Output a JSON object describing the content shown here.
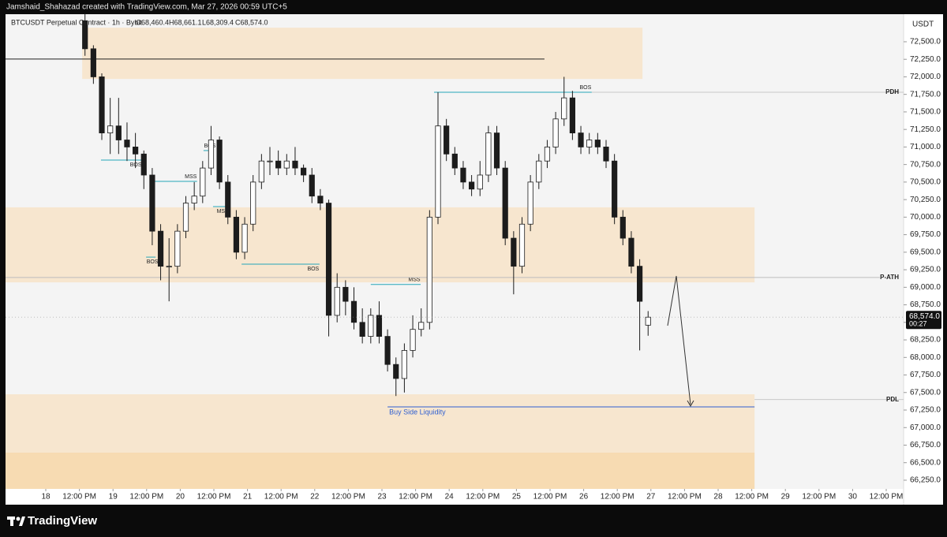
{
  "header": {
    "credit": "Jamshaid_Shahazad created with TradingView.com, Mar 27, 2026 00:59 UTC+5",
    "brand": "TradingView"
  },
  "chart_data": {
    "type": "candlestick",
    "symbol": "BTCUSDT Perpetual Contract · 1h · Bybit",
    "ohlc_legend": [
      "O68,460.4",
      "H68,661.1",
      "L68,309.4",
      "C68,574.0"
    ],
    "currency": "USDT",
    "up_color": "#ffffff",
    "down_color": "#1c1c1c",
    "wick_color": "#1c1c1c",
    "x": [
      14,
      17,
      20,
      23,
      26,
      29,
      32,
      35,
      38,
      41,
      44,
      47,
      50,
      53,
      56,
      59,
      62,
      65,
      68,
      71,
      74,
      77,
      80,
      83,
      86,
      89,
      92,
      95,
      98,
      101,
      104,
      107,
      110,
      113,
      116,
      119,
      122,
      125,
      128,
      131,
      134,
      137,
      140,
      143,
      146,
      149,
      152,
      155,
      158,
      161,
      164,
      167,
      170,
      173,
      176,
      179,
      182,
      185,
      188,
      191,
      194,
      197,
      200,
      203,
      206,
      209,
      212,
      215
    ],
    "open": [
      72800,
      72400,
      72000,
      71200,
      71300,
      71100,
      71000,
      70900,
      70600,
      69800,
      69300,
      69300,
      69800,
      70200,
      70300,
      70700,
      71100,
      70500,
      70000,
      69500,
      69900,
      70500,
      70800,
      70800,
      70700,
      70800,
      70700,
      70600,
      70300,
      70200,
      68600,
      69000,
      68800,
      68500,
      68300,
      68600,
      68300,
      67900,
      67700,
      68100,
      68400,
      68500,
      70000,
      71300,
      70900,
      70700,
      70500,
      70400,
      70600,
      71200,
      70700,
      69700,
      69300,
      69900,
      70500,
      70800,
      71000,
      71400,
      71700,
      71200,
      71000,
      71100,
      71000,
      70800,
      70000,
      69700,
      69300,
      68460
    ],
    "high": [
      72900,
      72450,
      72050,
      71700,
      71700,
      71350,
      71200,
      70950,
      70700,
      69900,
      69700,
      69900,
      70300,
      70500,
      70800,
      71300,
      71150,
      70600,
      70100,
      70000,
      70600,
      70900,
      71000,
      70950,
      70900,
      71000,
      70750,
      70700,
      70400,
      70250,
      69200,
      69100,
      69000,
      68700,
      68700,
      68800,
      68400,
      68000,
      68200,
      68600,
      68700,
      70100,
      71780,
      71400,
      71000,
      70800,
      70600,
      70800,
      71300,
      71300,
      70800,
      69800,
      70000,
      70600,
      70900,
      71100,
      71500,
      72000,
      71800,
      71300,
      71200,
      71200,
      71100,
      70900,
      70100,
      69800,
      69400,
      68661
    ],
    "low": [
      72300,
      71900,
      71100,
      70900,
      70900,
      70800,
      70700,
      70400,
      69600,
      69100,
      68800,
      69200,
      69700,
      70100,
      70200,
      70600,
      70400,
      69900,
      69400,
      69400,
      69800,
      70400,
      70600,
      70600,
      70600,
      70600,
      70500,
      70200,
      70100,
      68300,
      68500,
      68600,
      68400,
      68200,
      68200,
      68200,
      67800,
      67450,
      67500,
      68000,
      68300,
      68400,
      69900,
      70800,
      70600,
      70400,
      70300,
      70300,
      70500,
      70600,
      69600,
      68900,
      69200,
      69800,
      70400,
      70700,
      70900,
      71300,
      71100,
      70900,
      70900,
      70900,
      70700,
      69900,
      69600,
      69200,
      68100,
      68309
    ],
    "close": [
      72400,
      72000,
      71200,
      71300,
      71100,
      71000,
      70900,
      70600,
      69800,
      69300,
      69300,
      69800,
      70200,
      70300,
      70700,
      71100,
      70500,
      70000,
      69500,
      69900,
      70500,
      70800,
      70800,
      70700,
      70800,
      70700,
      70600,
      70300,
      70200,
      68600,
      69000,
      68800,
      68500,
      68300,
      68600,
      68300,
      67900,
      67700,
      68100,
      68400,
      68500,
      70000,
      71300,
      70900,
      70700,
      70500,
      70400,
      70600,
      71200,
      70700,
      69700,
      69300,
      69900,
      70500,
      70800,
      71000,
      71400,
      71700,
      71200,
      71000,
      71100,
      71000,
      70800,
      70000,
      69700,
      69300,
      68800,
      68574
    ],
    "xlim": [
      -14.37,
      306.2
    ],
    "ylim": [
      66126,
      72893
    ],
    "xticks": [
      {
        "value": 0,
        "label": "18"
      },
      {
        "value": 12,
        "label": "12:00 PM"
      },
      {
        "value": 24,
        "label": "19"
      },
      {
        "value": 36,
        "label": "12:00 PM"
      },
      {
        "value": 48,
        "label": "20"
      },
      {
        "value": 60,
        "label": "12:00 PM"
      },
      {
        "value": 72,
        "label": "21"
      },
      {
        "value": 84,
        "label": "12:00 PM"
      },
      {
        "value": 96,
        "label": "22"
      },
      {
        "value": 108,
        "label": "12:00 PM"
      },
      {
        "value": 120,
        "label": "23"
      },
      {
        "value": 132,
        "label": "12:00 PM"
      },
      {
        "value": 144,
        "label": "24"
      },
      {
        "value": 156,
        "label": "12:00 PM"
      },
      {
        "value": 168,
        "label": "25"
      },
      {
        "value": 180,
        "label": "12:00 PM"
      },
      {
        "value": 192,
        "label": "26"
      },
      {
        "value": 204,
        "label": "12:00 PM"
      },
      {
        "value": 216,
        "label": "27"
      },
      {
        "value": 228,
        "label": "12:00 PM"
      },
      {
        "value": 240,
        "label": "28"
      },
      {
        "value": 252,
        "label": "12:00 PM"
      },
      {
        "value": 264,
        "label": "29"
      },
      {
        "value": 276,
        "label": "12:00 PM"
      },
      {
        "value": 288,
        "label": "30"
      },
      {
        "value": 300,
        "label": "12:00 PM"
      }
    ],
    "yticks": [
      {
        "value": 72500,
        "label": "72,500.0"
      },
      {
        "value": 72250,
        "label": "72,250.0"
      },
      {
        "value": 72000,
        "label": "72,000.0"
      },
      {
        "value": 71750,
        "label": "71,750.0"
      },
      {
        "value": 71500,
        "label": "71,500.0"
      },
      {
        "value": 71250,
        "label": "71,250.0"
      },
      {
        "value": 71000,
        "label": "71,000.0"
      },
      {
        "value": 70750,
        "label": "70,750.0"
      },
      {
        "value": 70500,
        "label": "70,500.0"
      },
      {
        "value": 70250,
        "label": "70,250.0"
      },
      {
        "value": 70000,
        "label": "70,000.0"
      },
      {
        "value": 69750,
        "label": "69,750.0"
      },
      {
        "value": 69500,
        "label": "69,500.0"
      },
      {
        "value": 69250,
        "label": "69,250.0"
      },
      {
        "value": 69000,
        "label": "69,000.0"
      },
      {
        "value": 68750,
        "label": "68,750.0"
      },
      {
        "value": 68500,
        "label": "68,500.0"
      },
      {
        "value": 68250,
        "label": "68,250.0"
      },
      {
        "value": 68000,
        "label": "68,000.0"
      },
      {
        "value": 67750,
        "label": "67,750.0"
      },
      {
        "value": 67500,
        "label": "67,500.0"
      },
      {
        "value": 67250,
        "label": "67,250.0"
      },
      {
        "value": 67000,
        "label": "67,000.0"
      },
      {
        "value": 66750,
        "label": "66,750.0"
      },
      {
        "value": 66500,
        "label": "66,500.0"
      },
      {
        "value": 66250,
        "label": "66,250.0"
      }
    ],
    "grid": false,
    "last_price": {
      "value": 68574,
      "label": "68,574.0"
    },
    "countdown": "00:27",
    "zones": [
      {
        "from": 72700,
        "to": 71970,
        "x": [
          13,
          213
        ],
        "color": "#f7e6cf"
      },
      {
        "from": 70140,
        "to": 69070,
        "x": [
          -14.37,
          253
        ],
        "color": "#f7e6cf"
      },
      {
        "from": 67475,
        "to": 66643,
        "x": [
          -14.37,
          253
        ],
        "color": "#f7e6cf"
      },
      {
        "from": 66643,
        "to": 66126,
        "x": [
          -14.37,
          253
        ],
        "color": "#f7dbb2"
      }
    ],
    "levels": [
      {
        "price": 72253,
        "x": [
          -14.37,
          178
        ],
        "color": "#222222"
      },
      {
        "price": 70814,
        "x": [
          19.7,
          34.4
        ],
        "color": "#26a6b8",
        "label": "BOS",
        "label_pos": "below"
      },
      {
        "price": 70949,
        "x": [
          56.3,
          59.2
        ],
        "color": "#26a6b8",
        "label": "BOS",
        "label_pos": "above"
      },
      {
        "price": 70510,
        "x": [
          38,
          54
        ],
        "color": "#26a6b8",
        "label": "MSS",
        "label_pos": "above"
      },
      {
        "price": 70150,
        "x": [
          59.7,
          65.4
        ],
        "color": "#26a6b8",
        "label": "MSS",
        "label_pos": "below"
      },
      {
        "price": 69430,
        "x": [
          35.8,
          39.2
        ],
        "color": "#26a6b8",
        "label": "BOS",
        "label_pos": "below"
      },
      {
        "price": 69330,
        "x": [
          69.9,
          97.7
        ],
        "color": "#26a6b8",
        "label": "BOS",
        "label_pos": "below"
      },
      {
        "price": 69040,
        "x": [
          116,
          133.8
        ],
        "color": "#26a6b8",
        "label": "MSS",
        "label_pos": "above"
      },
      {
        "price": 71780,
        "x": [
          138.6,
          194.9
        ],
        "color": "#26a6b8",
        "label": "BOS",
        "label_pos": "above"
      },
      {
        "price": 71780,
        "x": [
          194.9,
          306.2
        ],
        "color": "#c8c8c8",
        "label": "PDH",
        "label_pos": "right"
      },
      {
        "price": 69140,
        "x": [
          -14.37,
          297.7
        ],
        "color": "#bdbdbd",
        "label": "P-ATH",
        "label_pos": "right"
      },
      {
        "price": 67400,
        "x": [
          253,
          306.2
        ],
        "color": "#c8c8c8",
        "label": "PDL",
        "label_pos": "right"
      },
      {
        "price": 67295,
        "x": [
          122,
          253
        ],
        "color": "#2f5fd0",
        "label": "Buy Side Liquidity",
        "label_pos": "below-left"
      }
    ]
  }
}
